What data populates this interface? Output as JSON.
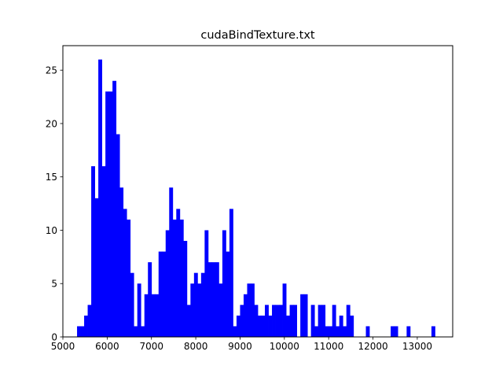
{
  "chart_data": {
    "type": "bar",
    "title": "cudaBindTexture.txt",
    "xlabel": "",
    "ylabel": "",
    "xlim": [
      5000,
      13800
    ],
    "ylim": [
      0,
      27.3
    ],
    "xticks": [
      5000,
      6000,
      7000,
      8000,
      9000,
      10000,
      11000,
      12000,
      13000
    ],
    "yticks": [
      0,
      5,
      10,
      15,
      20,
      25
    ],
    "bar_color": "#0000ff",
    "bin_width": 80,
    "bins": [
      {
        "x": 5320,
        "value": 1
      },
      {
        "x": 5400,
        "value": 1
      },
      {
        "x": 5480,
        "value": 2
      },
      {
        "x": 5560,
        "value": 3
      },
      {
        "x": 5640,
        "value": 16
      },
      {
        "x": 5720,
        "value": 13
      },
      {
        "x": 5800,
        "value": 26
      },
      {
        "x": 5880,
        "value": 16
      },
      {
        "x": 5960,
        "value": 23
      },
      {
        "x": 6040,
        "value": 23
      },
      {
        "x": 6120,
        "value": 24
      },
      {
        "x": 6200,
        "value": 19
      },
      {
        "x": 6280,
        "value": 14
      },
      {
        "x": 6360,
        "value": 12
      },
      {
        "x": 6440,
        "value": 11
      },
      {
        "x": 6520,
        "value": 6
      },
      {
        "x": 6600,
        "value": 1
      },
      {
        "x": 6680,
        "value": 5
      },
      {
        "x": 6760,
        "value": 1
      },
      {
        "x": 6840,
        "value": 4
      },
      {
        "x": 6920,
        "value": 7
      },
      {
        "x": 7000,
        "value": 4
      },
      {
        "x": 7080,
        "value": 4
      },
      {
        "x": 7160,
        "value": 8
      },
      {
        "x": 7240,
        "value": 8
      },
      {
        "x": 7320,
        "value": 10
      },
      {
        "x": 7400,
        "value": 14
      },
      {
        "x": 7480,
        "value": 11
      },
      {
        "x": 7560,
        "value": 12
      },
      {
        "x": 7640,
        "value": 11
      },
      {
        "x": 7720,
        "value": 9
      },
      {
        "x": 7800,
        "value": 3
      },
      {
        "x": 7880,
        "value": 5
      },
      {
        "x": 7960,
        "value": 6
      },
      {
        "x": 8040,
        "value": 5
      },
      {
        "x": 8120,
        "value": 6
      },
      {
        "x": 8200,
        "value": 10
      },
      {
        "x": 8280,
        "value": 7
      },
      {
        "x": 8360,
        "value": 7
      },
      {
        "x": 8440,
        "value": 7
      },
      {
        "x": 8520,
        "value": 5
      },
      {
        "x": 8600,
        "value": 10
      },
      {
        "x": 8680,
        "value": 8
      },
      {
        "x": 8760,
        "value": 12
      },
      {
        "x": 8840,
        "value": 1
      },
      {
        "x": 8920,
        "value": 2
      },
      {
        "x": 9000,
        "value": 3
      },
      {
        "x": 9080,
        "value": 4
      },
      {
        "x": 9160,
        "value": 5
      },
      {
        "x": 9240,
        "value": 5
      },
      {
        "x": 9320,
        "value": 3
      },
      {
        "x": 9400,
        "value": 2
      },
      {
        "x": 9480,
        "value": 2
      },
      {
        "x": 9560,
        "value": 3
      },
      {
        "x": 9640,
        "value": 2
      },
      {
        "x": 9720,
        "value": 3
      },
      {
        "x": 9800,
        "value": 3
      },
      {
        "x": 9880,
        "value": 3
      },
      {
        "x": 9960,
        "value": 5
      },
      {
        "x": 10040,
        "value": 2
      },
      {
        "x": 10120,
        "value": 3
      },
      {
        "x": 10200,
        "value": 3
      },
      {
        "x": 10360,
        "value": 4
      },
      {
        "x": 10440,
        "value": 4
      },
      {
        "x": 10600,
        "value": 3
      },
      {
        "x": 10680,
        "value": 1
      },
      {
        "x": 10760,
        "value": 3
      },
      {
        "x": 10840,
        "value": 3
      },
      {
        "x": 10920,
        "value": 1
      },
      {
        "x": 11000,
        "value": 1
      },
      {
        "x": 11080,
        "value": 3
      },
      {
        "x": 11160,
        "value": 1
      },
      {
        "x": 11240,
        "value": 2
      },
      {
        "x": 11320,
        "value": 1
      },
      {
        "x": 11400,
        "value": 3
      },
      {
        "x": 11480,
        "value": 2
      },
      {
        "x": 11840,
        "value": 1
      },
      {
        "x": 12400,
        "value": 1
      },
      {
        "x": 12480,
        "value": 1
      },
      {
        "x": 12760,
        "value": 1
      },
      {
        "x": 13320,
        "value": 1
      }
    ]
  }
}
